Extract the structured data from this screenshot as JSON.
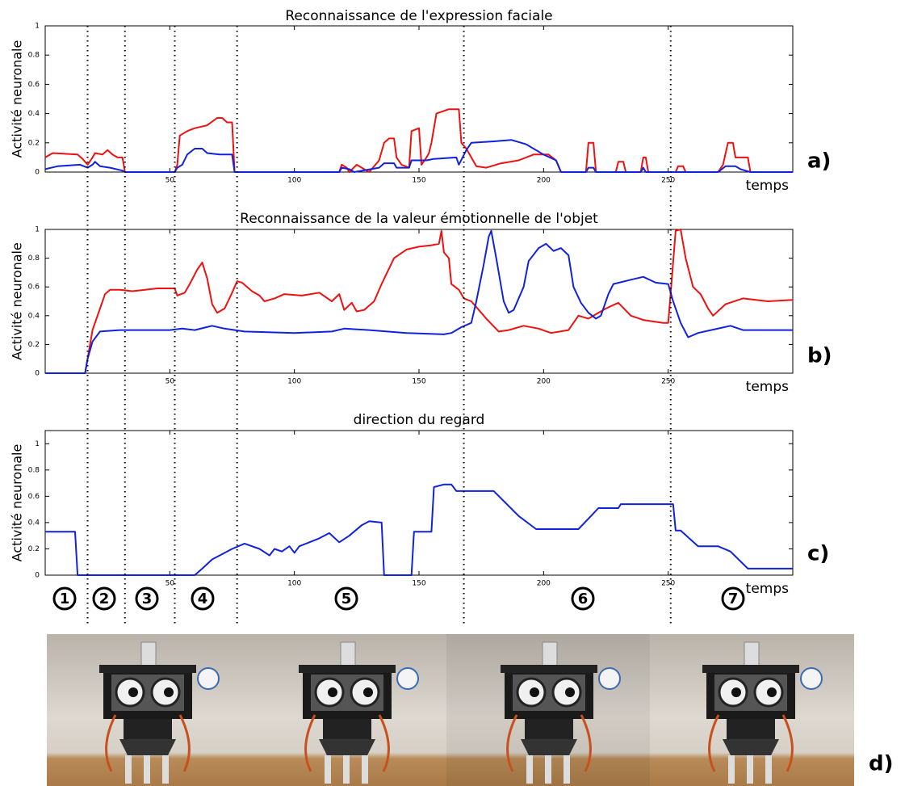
{
  "chart_data": [
    {
      "type": "line",
      "title": "Reconnaissance de l'expression faciale",
      "y_label": "Activité neuronale",
      "x_label": "temps",
      "xlim": [
        0,
        300
      ],
      "ylim": [
        0,
        1
      ],
      "xticks": [
        50,
        100,
        150,
        200,
        250
      ],
      "yticks": [
        0,
        0.2,
        0.4,
        0.6,
        0.8,
        1
      ],
      "series": [
        {
          "color": "#ee1111",
          "x": [
            0,
            3,
            13,
            15,
            17,
            19,
            20,
            23,
            25,
            27,
            29,
            31,
            32,
            52,
            53,
            54,
            57,
            60,
            65,
            69,
            71,
            73,
            75,
            76,
            118,
            119,
            121,
            122,
            125,
            128,
            130,
            134,
            136,
            138,
            140,
            141,
            143,
            146,
            147,
            150,
            151,
            153,
            154,
            155,
            157,
            162,
            166,
            167,
            169,
            173,
            177,
            183,
            190,
            196,
            202,
            205,
            207,
            217,
            218,
            220,
            221,
            229,
            230,
            232,
            233,
            239,
            240,
            241,
            242,
            253,
            254,
            256,
            257,
            270,
            272,
            274,
            276,
            277,
            282,
            283,
            300
          ],
          "values": [
            0.1,
            0.13,
            0.12,
            0.09,
            0.05,
            0.1,
            0.13,
            0.12,
            0.15,
            0.12,
            0.1,
            0.1,
            0,
            0,
            0.05,
            0.25,
            0.28,
            0.3,
            0.32,
            0.37,
            0.37,
            0.34,
            0.34,
            0,
            0,
            0.05,
            0.03,
            0,
            0.05,
            0.02,
            0,
            0.08,
            0.2,
            0.23,
            0.23,
            0.1,
            0.05,
            0.03,
            0.28,
            0.3,
            0.05,
            0.1,
            0.13,
            0.2,
            0.4,
            0.43,
            0.43,
            0.2,
            0.16,
            0.04,
            0.03,
            0.06,
            0.08,
            0.12,
            0.12,
            0.08,
            0,
            0,
            0.2,
            0.2,
            0,
            0,
            0.07,
            0.07,
            0,
            0,
            0.1,
            0.1,
            0,
            0,
            0.04,
            0.04,
            0,
            0,
            0.05,
            0.2,
            0.2,
            0.1,
            0.1,
            0,
            0
          ]
        },
        {
          "color": "#1122dd",
          "x": [
            0,
            5,
            14,
            17,
            19,
            20,
            22,
            26,
            31,
            32,
            52,
            53,
            55,
            57,
            60,
            63,
            65,
            70,
            75,
            76,
            118,
            119,
            122,
            124,
            134,
            136,
            140,
            141,
            146,
            147,
            153,
            156,
            165,
            166,
            169,
            171,
            180,
            187,
            193,
            200,
            205,
            207,
            217,
            218,
            220,
            221,
            239,
            240,
            241,
            270,
            273,
            277,
            279,
            283,
            300
          ],
          "values": [
            0.02,
            0.04,
            0.05,
            0.03,
            0.05,
            0.07,
            0.04,
            0.03,
            0.01,
            0,
            0,
            0.03,
            0.05,
            0.12,
            0.16,
            0.16,
            0.13,
            0.12,
            0.12,
            0,
            0,
            0.03,
            0.02,
            0,
            0.03,
            0.06,
            0.06,
            0.03,
            0.03,
            0.08,
            0.08,
            0.09,
            0.1,
            0.05,
            0.15,
            0.2,
            0.21,
            0.22,
            0.19,
            0.12,
            0.08,
            0,
            0,
            0.03,
            0.03,
            0,
            0,
            0.03,
            0,
            0,
            0.04,
            0.04,
            0.02,
            0,
            0
          ]
        }
      ]
    },
    {
      "type": "line",
      "title": "Reconnaissance de la valeur émotionnelle de l'objet",
      "y_label": "Activité neuronale",
      "x_label": "temps",
      "xlim": [
        0,
        300
      ],
      "ylim": [
        0,
        1
      ],
      "xticks": [
        50,
        100,
        150,
        200,
        250
      ],
      "yticks": [
        0,
        0.2,
        0.4,
        0.6,
        0.8,
        1
      ],
      "series": [
        {
          "color": "#ee1111",
          "x": [
            0,
            16,
            17,
            19,
            21,
            24,
            26,
            30,
            35,
            40,
            45,
            52,
            53,
            56,
            58,
            61,
            63,
            65,
            67,
            69,
            72,
            75,
            77,
            79,
            83,
            86,
            88,
            92,
            96,
            103,
            110,
            115,
            118,
            120,
            123,
            125,
            128,
            132,
            135,
            140,
            145,
            150,
            155,
            158,
            159,
            160,
            162,
            163,
            166,
            168,
            171,
            174,
            177,
            182,
            186,
            192,
            198,
            203,
            210,
            214,
            218,
            225,
            230,
            235,
            240,
            248,
            250,
            251,
            253,
            255,
            257,
            260,
            263,
            266,
            268,
            273,
            280,
            290,
            300
          ],
          "values": [
            0,
            0,
            0.1,
            0.3,
            0.4,
            0.55,
            0.58,
            0.58,
            0.57,
            0.58,
            0.59,
            0.59,
            0.54,
            0.56,
            0.62,
            0.72,
            0.77,
            0.66,
            0.48,
            0.42,
            0.45,
            0.56,
            0.64,
            0.63,
            0.57,
            0.54,
            0.5,
            0.52,
            0.55,
            0.54,
            0.56,
            0.5,
            0.55,
            0.44,
            0.49,
            0.43,
            0.44,
            0.5,
            0.62,
            0.8,
            0.86,
            0.88,
            0.89,
            0.9,
            0.99,
            0.84,
            0.8,
            0.62,
            0.58,
            0.52,
            0.5,
            0.44,
            0.38,
            0.29,
            0.3,
            0.33,
            0.31,
            0.28,
            0.3,
            0.4,
            0.38,
            0.45,
            0.49,
            0.4,
            0.37,
            0.35,
            0.35,
            0.56,
            0.99,
            1,
            0.8,
            0.6,
            0.55,
            0.45,
            0.4,
            0.48,
            0.52,
            0.5,
            0.51
          ]
        },
        {
          "color": "#1122dd",
          "x": [
            0,
            16,
            17,
            19,
            22,
            30,
            50,
            55,
            60,
            67,
            72,
            80,
            100,
            115,
            120,
            130,
            145,
            160,
            163,
            167,
            171,
            173,
            176,
            178,
            179,
            181,
            184,
            186,
            188,
            192,
            194,
            198,
            201,
            204,
            207,
            210,
            212,
            215,
            218,
            221,
            223,
            226,
            228,
            235,
            240,
            245,
            250,
            252,
            255,
            258,
            262,
            275,
            280,
            300
          ],
          "values": [
            0,
            0,
            0.1,
            0.22,
            0.29,
            0.3,
            0.3,
            0.31,
            0.3,
            0.33,
            0.31,
            0.29,
            0.28,
            0.29,
            0.31,
            0.3,
            0.28,
            0.27,
            0.28,
            0.32,
            0.35,
            0.5,
            0.76,
            0.95,
            0.99,
            0.8,
            0.5,
            0.42,
            0.44,
            0.6,
            0.78,
            0.87,
            0.9,
            0.85,
            0.87,
            0.82,
            0.6,
            0.49,
            0.42,
            0.38,
            0.4,
            0.55,
            0.62,
            0.65,
            0.67,
            0.63,
            0.62,
            0.5,
            0.35,
            0.25,
            0.28,
            0.33,
            0.3,
            0.3
          ]
        }
      ]
    },
    {
      "type": "line",
      "title": "direction du regard",
      "y_label": "Activité neuronale",
      "x_label": "temps",
      "xlim": [
        0,
        300
      ],
      "ylim": [
        0,
        1.1
      ],
      "xticks": [
        50,
        100,
        150,
        200,
        250
      ],
      "yticks": [
        0,
        0.2,
        0.4,
        0.6,
        0.8,
        1
      ],
      "series": [
        {
          "color": "#1122dd",
          "x": [
            0,
            12,
            13,
            16,
            60,
            63,
            67,
            75,
            80,
            86,
            90,
            92,
            95,
            98,
            100,
            102,
            106,
            110,
            114,
            118,
            122,
            127,
            130,
            135,
            136,
            147,
            148,
            155,
            156,
            160,
            163,
            165,
            180,
            190,
            197,
            214,
            219,
            222,
            230,
            231,
            252,
            253,
            255,
            262,
            270,
            275,
            282,
            300
          ],
          "values": [
            0.33,
            0.33,
            0,
            0,
            0,
            0.05,
            0.12,
            0.2,
            0.24,
            0.2,
            0.15,
            0.2,
            0.18,
            0.22,
            0.17,
            0.22,
            0.25,
            0.28,
            0.32,
            0.25,
            0.3,
            0.38,
            0.41,
            0.4,
            0,
            0,
            0.33,
            0.33,
            0.67,
            0.69,
            0.69,
            0.64,
            0.64,
            0.45,
            0.35,
            0.35,
            0.45,
            0.51,
            0.51,
            0.54,
            0.54,
            0.34,
            0.34,
            0.22,
            0.22,
            0.18,
            0.05,
            0.05
          ]
        }
      ]
    }
  ],
  "phase_boundaries": [
    17,
    32,
    52,
    77,
    168,
    251
  ],
  "phases": [
    "1",
    "2",
    "3",
    "4",
    "5",
    "6",
    "7"
  ],
  "panel_labels": [
    "a)",
    "b)",
    "c)",
    "d)"
  ]
}
